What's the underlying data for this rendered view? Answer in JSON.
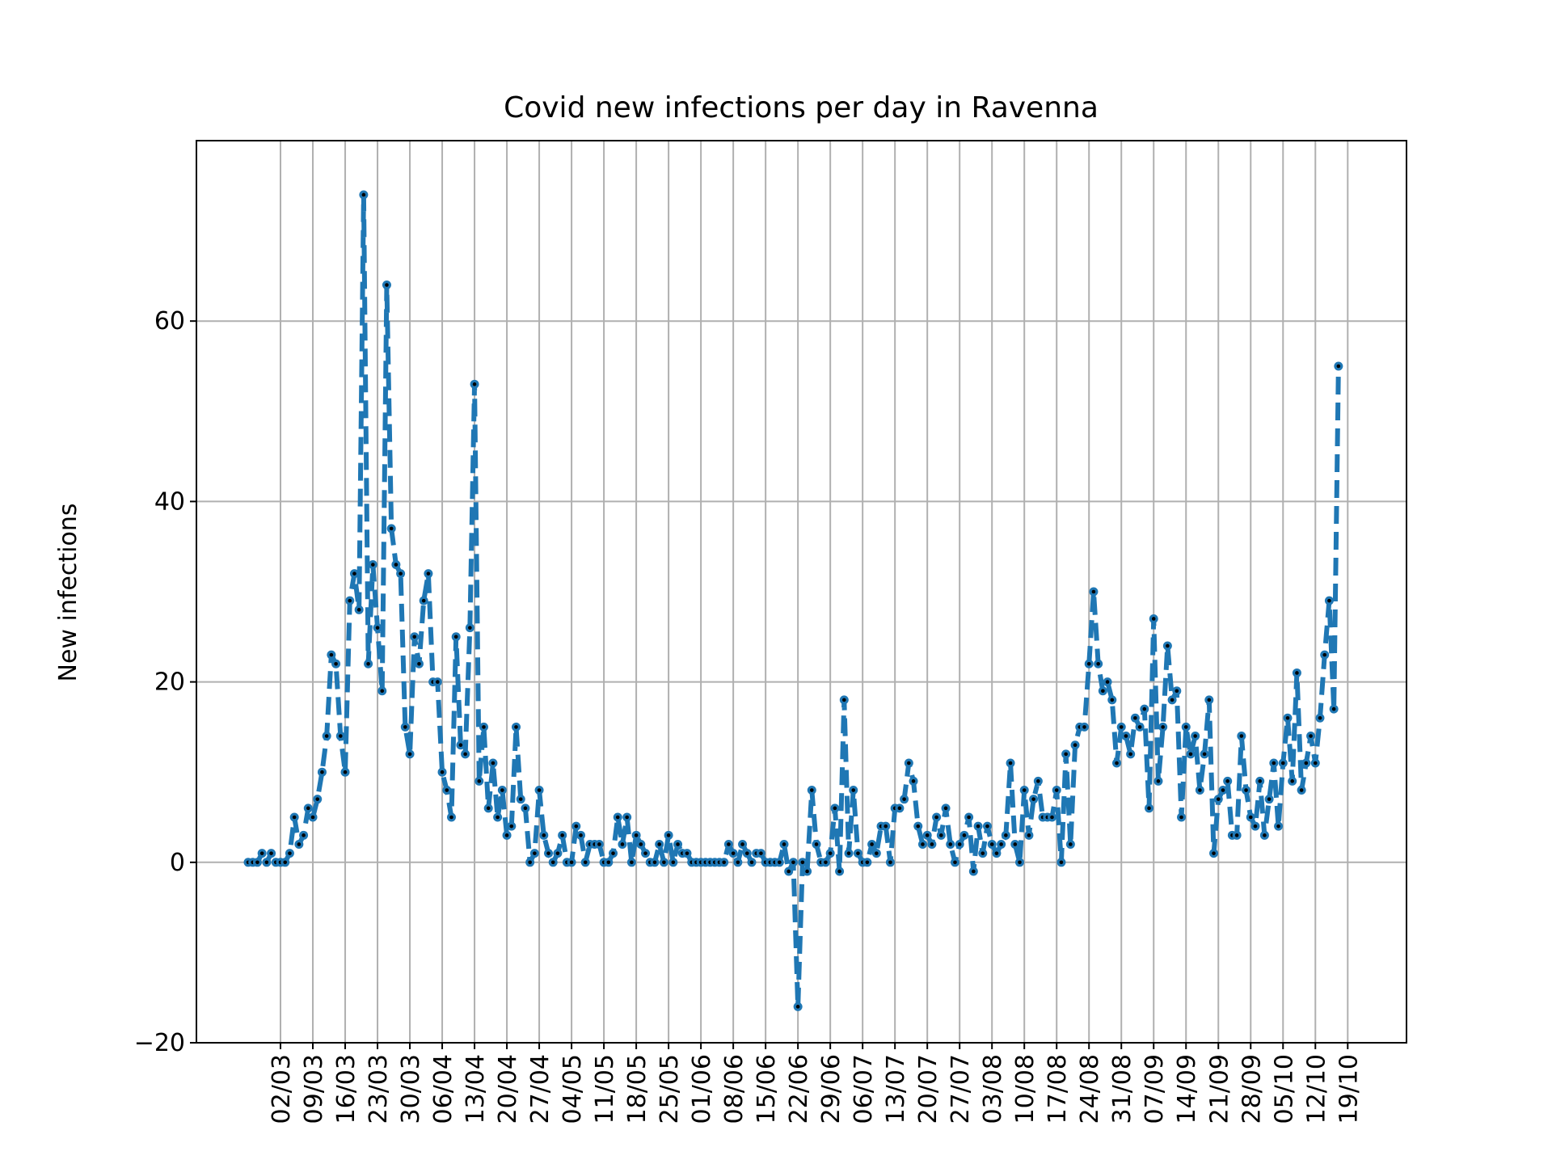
{
  "chart_data": {
    "type": "line",
    "title": "Covid new infections per day in Ravenna",
    "xlabel": "",
    "ylabel": "New infections",
    "ylim": [
      -20,
      80
    ],
    "yticks": [
      -20,
      0,
      20,
      40,
      60
    ],
    "grid": true,
    "line_color": "#1f77b4",
    "marker_color": "#000000",
    "line_style": "dashed",
    "start_date": "2020-02-24",
    "end_date": "2020-10-20",
    "xtick_labels": [
      "02/03",
      "09/03",
      "16/03",
      "23/03",
      "30/03",
      "06/04",
      "13/04",
      "20/04",
      "27/04",
      "04/05",
      "11/05",
      "18/05",
      "25/05",
      "01/06",
      "08/06",
      "15/06",
      "22/06",
      "29/06",
      "06/07",
      "13/07",
      "20/07",
      "27/07",
      "03/08",
      "10/08",
      "17/08",
      "24/08",
      "31/08",
      "07/09",
      "14/09",
      "21/09",
      "28/09",
      "05/10",
      "12/10",
      "19/10"
    ],
    "series": [
      {
        "name": "",
        "values": [
          0,
          0,
          0,
          1,
          0,
          1,
          0,
          0,
          0,
          1,
          5,
          2,
          3,
          6,
          5,
          7,
          10,
          14,
          23,
          22,
          14,
          10,
          29,
          32,
          28,
          74,
          22,
          33,
          26,
          19,
          64,
          37,
          33,
          32,
          15,
          12,
          25,
          22,
          29,
          32,
          20,
          20,
          10,
          8,
          5,
          25,
          13,
          12,
          26,
          53,
          9,
          15,
          6,
          11,
          5,
          8,
          3,
          4,
          15,
          7,
          6,
          0,
          1,
          8,
          3,
          1,
          0,
          1,
          3,
          0,
          0,
          4,
          3,
          0,
          2,
          2,
          2,
          0,
          0,
          1,
          5,
          2,
          5,
          0,
          3,
          2,
          1,
          0,
          0,
          2,
          0,
          3,
          0,
          2,
          1,
          1,
          0,
          0,
          0,
          0,
          0,
          0,
          0,
          0,
          2,
          1,
          0,
          2,
          1,
          0,
          1,
          1,
          0,
          0,
          0,
          0,
          2,
          -1,
          0,
          -16,
          0,
          -1,
          8,
          2,
          0,
          0,
          1,
          6,
          -1,
          18,
          1,
          8,
          1,
          0,
          0,
          2,
          1,
          4,
          4,
          0,
          6,
          6,
          7,
          11,
          9,
          4,
          2,
          3,
          2,
          5,
          3,
          6,
          2,
          0,
          2,
          3,
          5,
          -1,
          4,
          1,
          4,
          2,
          1,
          2,
          3,
          11,
          2,
          0,
          8,
          3,
          7,
          9,
          5,
          5,
          5,
          8,
          0,
          12,
          2,
          13,
          15,
          15,
          22,
          30,
          22,
          19,
          20,
          18,
          11,
          15,
          14,
          12,
          16,
          15,
          17,
          6,
          27,
          9,
          15,
          24,
          18,
          19,
          5,
          15,
          12,
          14,
          8,
          12,
          18,
          1,
          7,
          8,
          9,
          3,
          3,
          14,
          8,
          5,
          4,
          9,
          3,
          7,
          11,
          4,
          11,
          16,
          9,
          21,
          8,
          11,
          14,
          11,
          16,
          23,
          29,
          17,
          55
        ]
      }
    ]
  }
}
